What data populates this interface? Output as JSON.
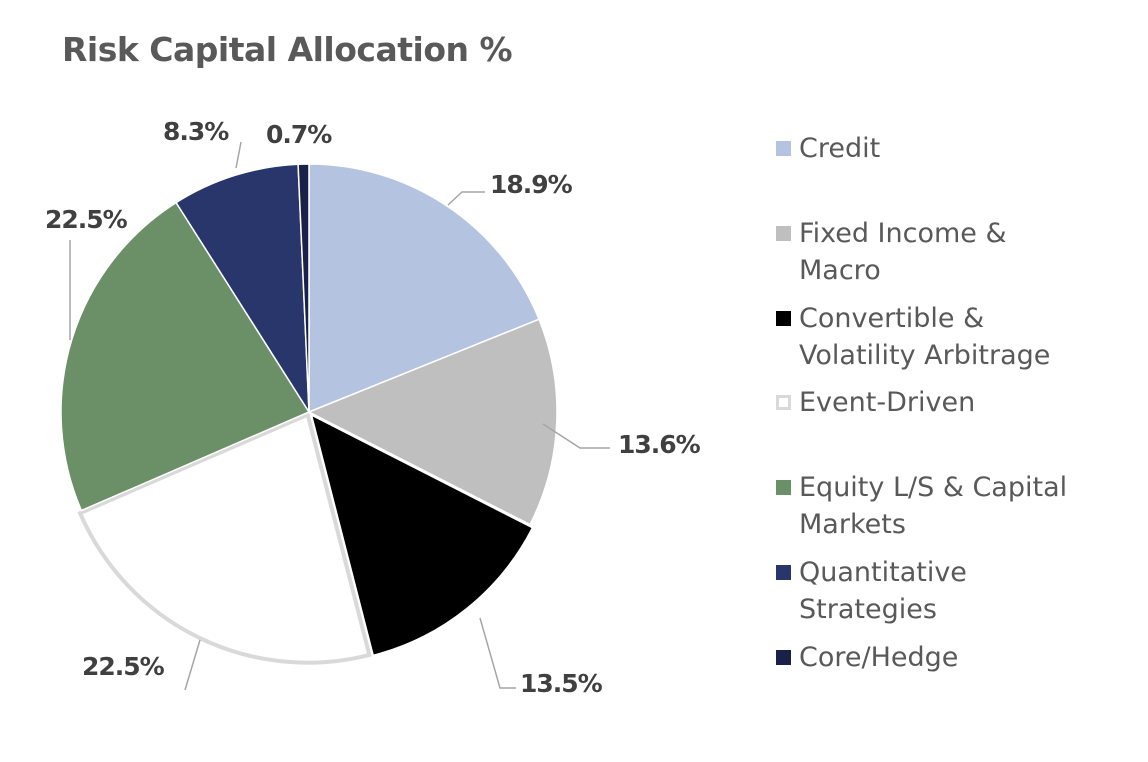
{
  "chart_data": {
    "type": "pie",
    "title": "Risk Capital Allocation %",
    "legend_position": "right",
    "slices": [
      {
        "name": "Credit",
        "value": 18.9,
        "label": "18.9%",
        "color": "#b4c4e0"
      },
      {
        "name": "Fixed Income & Macro",
        "value": 13.6,
        "label": "13.6%",
        "color": "#bfbfbf"
      },
      {
        "name": "Convertible & Volatility Arbitrage",
        "value": 13.5,
        "label": "13.5%",
        "color": "#000000"
      },
      {
        "name": "Event-Driven",
        "value": 22.5,
        "label": "22.5%",
        "color": "#ffffff",
        "border": "#d9d9d9"
      },
      {
        "name": "Equity L/S & Capital Markets",
        "value": 22.5,
        "label": "22.5%",
        "color": "#6b9068"
      },
      {
        "name": "Quantitative Strategies",
        "value": 8.3,
        "label": "8.3%",
        "color": "#28366b"
      },
      {
        "name": "Core/Hedge",
        "value": 0.7,
        "label": "0.7%",
        "color": "#1a2148"
      }
    ],
    "legend_lines": [
      [
        "Credit"
      ],
      [
        "Fixed Income &",
        "Macro"
      ],
      [
        "Convertible &",
        "Volatility Arbitrage"
      ],
      [
        "Event-Driven"
      ],
      [
        "Equity L/S & Capital",
        "Markets"
      ],
      [
        "Quantitative",
        "Strategies"
      ],
      [
        "Core/Hedge"
      ]
    ]
  }
}
